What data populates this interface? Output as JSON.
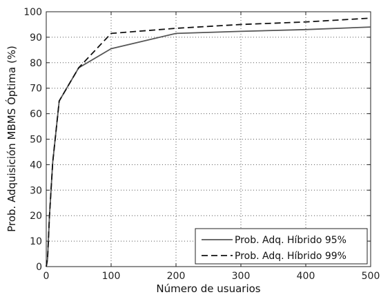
{
  "chart_data": {
    "type": "line",
    "xlabel": "Número de usuarios",
    "ylabel": "Prob. Adquisición MBMS Óptima (%)",
    "xlim": [
      0,
      500
    ],
    "ylim": [
      0,
      100
    ],
    "xticks": [
      0,
      100,
      200,
      300,
      400,
      500
    ],
    "yticks": [
      0,
      10,
      20,
      30,
      40,
      50,
      60,
      70,
      80,
      90,
      100
    ],
    "grid": true,
    "legend_position": "bottom-right",
    "series": [
      {
        "name": "Prob. Adq. Híbrido 95%",
        "line_style": "solid",
        "color": "#555555",
        "x": [
          0,
          2,
          5,
          10,
          20,
          50,
          100,
          200,
          300,
          400,
          500
        ],
        "y": [
          0,
          3,
          20,
          41,
          65,
          78,
          85.5,
          91.5,
          92.3,
          93,
          94
        ]
      },
      {
        "name": "Prob. Adq. Híbrido 99%",
        "line_style": "dashed",
        "color": "#111111",
        "x": [
          0,
          2,
          5,
          10,
          20,
          50,
          100,
          200,
          300,
          400,
          500
        ],
        "y": [
          0,
          3,
          20,
          41,
          65,
          78,
          91.5,
          93.5,
          95,
          96,
          97.5
        ]
      }
    ]
  }
}
